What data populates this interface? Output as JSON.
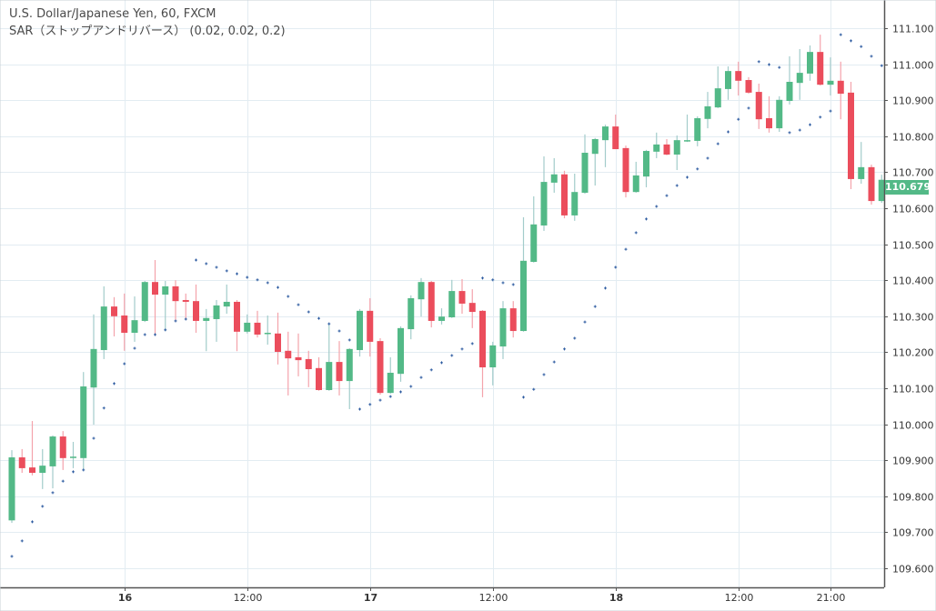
{
  "legend": {
    "symbol_line": "U.S. Dollar/Japanese Yen, 60, FXCM",
    "indicator_line": "SAR（ストップアンドリバース） (0.02, 0.02, 0.2)"
  },
  "current_price": "110.679",
  "colors": {
    "up": "#53b987",
    "down": "#eb4d5c",
    "up_wick": "#a3cccb",
    "down_wick": "#f4a3ab",
    "sar": "#2c5aa0",
    "grid": "#e3ecf2",
    "axis": "#555555"
  },
  "chart_data": {
    "type": "candlestick",
    "title": "U.S. Dollar/Japanese Yen, 60, FXCM",
    "ylim": [
      109.56,
      111.13
    ],
    "yticks": [
      "111.100",
      "111.000",
      "110.900",
      "110.800",
      "110.700",
      "110.600",
      "110.500",
      "110.400",
      "110.300",
      "110.200",
      "110.100",
      "110.000",
      "109.900",
      "109.800",
      "109.700",
      "109.600"
    ],
    "xticks": [
      {
        "label": "16",
        "bar": 11,
        "bold": true
      },
      {
        "label": "12:00",
        "bar": 23,
        "bold": false
      },
      {
        "label": "17",
        "bar": 35,
        "bold": true
      },
      {
        "label": "12:00",
        "bar": 47,
        "bold": false
      },
      {
        "label": "18",
        "bar": 59,
        "bold": true
      },
      {
        "label": "12:00",
        "bar": 71,
        "bold": false
      },
      {
        "label": "21:00",
        "bar": 80,
        "bold": false
      }
    ],
    "ohlc_fields": [
      "open",
      "high",
      "low",
      "close"
    ],
    "ohlc": [
      [
        109.733,
        109.928,
        109.726,
        109.908
      ],
      [
        109.908,
        109.931,
        109.865,
        109.878
      ],
      [
        109.88,
        110.009,
        109.858,
        109.865
      ],
      [
        109.865,
        109.931,
        109.82,
        109.885
      ],
      [
        109.883,
        109.969,
        109.822,
        109.966
      ],
      [
        109.966,
        109.981,
        109.873,
        109.906
      ],
      [
        109.908,
        109.951,
        109.878,
        109.91
      ],
      [
        109.906,
        110.145,
        109.875,
        110.105
      ],
      [
        110.102,
        110.305,
        109.999,
        110.209
      ],
      [
        110.206,
        110.383,
        110.181,
        110.327
      ],
      [
        110.327,
        110.353,
        110.244,
        110.3
      ],
      [
        110.302,
        110.363,
        110.204,
        110.254
      ],
      [
        110.254,
        110.355,
        110.229,
        110.289
      ],
      [
        110.287,
        110.398,
        110.284,
        110.395
      ],
      [
        110.395,
        110.456,
        110.246,
        110.36
      ],
      [
        110.36,
        110.398,
        110.259,
        110.383
      ],
      [
        110.383,
        110.4,
        110.284,
        110.342
      ],
      [
        110.345,
        110.363,
        110.29,
        110.34
      ],
      [
        110.342,
        110.388,
        110.254,
        110.287
      ],
      [
        110.287,
        110.32,
        110.203,
        110.295
      ],
      [
        110.292,
        110.345,
        110.229,
        110.33
      ],
      [
        110.327,
        110.388,
        110.307,
        110.34
      ],
      [
        110.34,
        110.345,
        110.203,
        110.257
      ],
      [
        110.257,
        110.305,
        110.252,
        110.282
      ],
      [
        110.282,
        110.315,
        110.241,
        110.249
      ],
      [
        110.252,
        110.302,
        110.221,
        110.254
      ],
      [
        110.252,
        110.31,
        110.166,
        110.201
      ],
      [
        110.204,
        110.257,
        110.08,
        110.183
      ],
      [
        110.186,
        110.252,
        110.133,
        110.178
      ],
      [
        110.181,
        110.204,
        110.103,
        110.153
      ],
      [
        110.156,
        110.186,
        110.093,
        110.095
      ],
      [
        110.095,
        110.279,
        110.093,
        110.173
      ],
      [
        110.173,
        110.231,
        110.08,
        110.12
      ],
      [
        110.12,
        110.211,
        110.042,
        110.209
      ],
      [
        110.206,
        110.32,
        110.188,
        110.315
      ],
      [
        110.315,
        110.35,
        110.188,
        110.229
      ],
      [
        110.231,
        110.239,
        110.082,
        110.087
      ],
      [
        110.087,
        110.186,
        110.085,
        110.143
      ],
      [
        110.14,
        110.272,
        110.118,
        110.267
      ],
      [
        110.264,
        110.358,
        110.236,
        110.35
      ],
      [
        110.347,
        110.406,
        110.299,
        110.395
      ],
      [
        110.395,
        110.398,
        110.269,
        110.287
      ],
      [
        110.287,
        110.322,
        110.277,
        110.299
      ],
      [
        110.297,
        110.401,
        110.295,
        110.37
      ],
      [
        110.37,
        110.403,
        110.307,
        110.335
      ],
      [
        110.337,
        110.375,
        110.267,
        110.312
      ],
      [
        110.315,
        110.317,
        110.075,
        110.158
      ],
      [
        110.158,
        110.229,
        110.108,
        110.219
      ],
      [
        110.216,
        110.342,
        110.181,
        110.322
      ],
      [
        110.322,
        110.342,
        110.241,
        110.259
      ],
      [
        110.259,
        110.575,
        110.257,
        110.454
      ],
      [
        110.451,
        110.633,
        110.449,
        110.555
      ],
      [
        110.552,
        110.744,
        110.537,
        110.673
      ],
      [
        110.671,
        110.739,
        110.643,
        110.694
      ],
      [
        110.694,
        110.704,
        110.572,
        110.58
      ],
      [
        110.58,
        110.696,
        110.565,
        110.645
      ],
      [
        110.643,
        110.805,
        110.64,
        110.754
      ],
      [
        110.751,
        110.795,
        110.663,
        110.792
      ],
      [
        110.789,
        110.832,
        110.714,
        110.827
      ],
      [
        110.827,
        110.86,
        110.764,
        110.764
      ],
      [
        110.767,
        110.774,
        110.63,
        110.645
      ],
      [
        110.645,
        110.729,
        110.643,
        110.691
      ],
      [
        110.688,
        110.762,
        110.658,
        110.759
      ],
      [
        110.757,
        110.81,
        110.739,
        110.777
      ],
      [
        110.777,
        110.792,
        110.747,
        110.749
      ],
      [
        110.749,
        110.802,
        110.706,
        110.789
      ],
      [
        110.787,
        110.86,
        110.784,
        110.789
      ],
      [
        110.787,
        110.855,
        110.772,
        110.85
      ],
      [
        110.848,
        110.923,
        110.822,
        110.883
      ],
      [
        110.88,
        110.994,
        110.878,
        110.933
      ],
      [
        110.931,
        110.994,
        110.901,
        110.981
      ],
      [
        110.981,
        111.007,
        110.913,
        110.954
      ],
      [
        110.956,
        110.964,
        110.918,
        110.921
      ],
      [
        110.923,
        110.946,
        110.82,
        110.847
      ],
      [
        110.85,
        110.911,
        110.81,
        110.822
      ],
      [
        110.822,
        110.911,
        110.812,
        110.901
      ],
      [
        110.898,
        111.022,
        110.888,
        110.951
      ],
      [
        110.948,
        111.042,
        110.901,
        110.976
      ],
      [
        110.974,
        111.052,
        110.954,
        111.034
      ],
      [
        111.034,
        111.082,
        110.941,
        110.943
      ],
      [
        110.943,
        111.019,
        110.913,
        110.954
      ],
      [
        110.954,
        111.007,
        110.847,
        110.918
      ],
      [
        110.921,
        110.951,
        110.653,
        110.681
      ],
      [
        110.681,
        110.784,
        110.668,
        110.714
      ],
      [
        110.714,
        110.721,
        110.61,
        110.62
      ],
      [
        110.62,
        110.693,
        110.615,
        110.679
      ]
    ],
    "sar": [
      109.633,
      109.676,
      109.729,
      109.772,
      109.81,
      109.842,
      109.868,
      109.873,
      109.961,
      110.045,
      110.113,
      110.168,
      110.211,
      110.249,
      110.249,
      110.262,
      110.287,
      110.292,
      110.456,
      110.446,
      110.436,
      110.426,
      110.418,
      110.408,
      110.401,
      110.393,
      110.38,
      110.355,
      110.332,
      110.312,
      110.294,
      110.279,
      110.259,
      110.234,
      110.042,
      110.055,
      110.067,
      110.077,
      110.09,
      110.105,
      110.13,
      110.151,
      110.171,
      110.191,
      110.209,
      110.224,
      110.406,
      110.401,
      110.393,
      110.388,
      110.075,
      110.097,
      110.138,
      110.173,
      110.209,
      110.239,
      110.284,
      110.327,
      110.378,
      110.436,
      110.486,
      110.532,
      110.57,
      110.605,
      110.635,
      110.663,
      110.686,
      110.709,
      110.739,
      110.779,
      110.812,
      110.847,
      110.878,
      111.007,
      110.999,
      110.991,
      110.81,
      110.817,
      110.832,
      110.853,
      110.87,
      111.082,
      111.065,
      111.049,
      111.022,
      110.996
    ]
  }
}
